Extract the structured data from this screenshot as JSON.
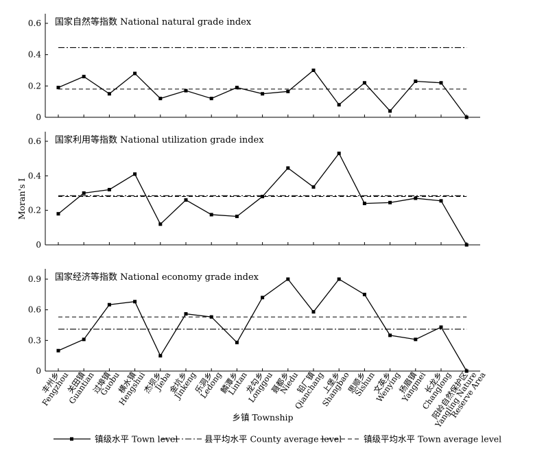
{
  "chart_data": {
    "type": "line",
    "ylabel": "Moran's I",
    "xlabel": "乡镇 Township",
    "categories": [
      {
        "cn": "丰州乡",
        "en": "Fengzhou"
      },
      {
        "cn": "关田镇",
        "en": "Guantian"
      },
      {
        "cn": "过埠镇",
        "en": "Guobu"
      },
      {
        "cn": "横水镇",
        "en": "Hengshui"
      },
      {
        "cn": "杰坝乡",
        "en": "Jieba"
      },
      {
        "cn": "金坑乡",
        "en": "Jinkeng"
      },
      {
        "cn": "乐洞乡",
        "en": "Ledong"
      },
      {
        "cn": "麟潭乡",
        "en": "Lintan"
      },
      {
        "cn": "龙勾乡",
        "en": "Longgou"
      },
      {
        "cn": "聂都乡",
        "en": "Niedu"
      },
      {
        "cn": "铅厂镇",
        "en": "Qianchang"
      },
      {
        "cn": "上堡乡",
        "en": "Shangbao"
      },
      {
        "cn": "思顺乡",
        "en": "Sishun"
      },
      {
        "cn": "文英乡",
        "en": "Wenying"
      },
      {
        "cn": "扬眉镇",
        "en": "Yangmei"
      },
      {
        "cn": "长龙乡",
        "en": "Changlong"
      },
      {
        "cn": "阳岭自然保护区",
        "en": "Yangling Nature Reserve Area"
      }
    ],
    "legend": {
      "placement": "bottom",
      "entries": [
        {
          "key": "town",
          "label": "镇级水平 Town level"
        },
        {
          "key": "county",
          "label": "县平均水平 County average level"
        },
        {
          "key": "town_avg",
          "label": "镇级平均水平 Town average level"
        }
      ]
    },
    "panels": [
      {
        "title": "国家自然等指数 National natural grade index",
        "ylim": [
          0,
          0.6
        ],
        "yticks": [
          "0",
          "0.2",
          "0.4",
          "0.6"
        ],
        "ytick_values": [
          0,
          0.2,
          0.4,
          0.6
        ],
        "town_level": [
          0.19,
          0.26,
          0.15,
          0.28,
          0.12,
          0.17,
          0.12,
          0.19,
          0.15,
          0.165,
          0.3,
          0.08,
          0.22,
          0.04,
          0.23,
          0.22,
          0.0
        ],
        "county_average": 0.445,
        "town_average": 0.18
      },
      {
        "title": "国家利用等指数 National utilization grade index",
        "ylim": [
          0,
          0.6
        ],
        "yticks": [
          "0",
          "0.2",
          "0.4",
          "0.6"
        ],
        "ytick_values": [
          0,
          0.2,
          0.4,
          0.6
        ],
        "town_level": [
          0.18,
          0.3,
          0.32,
          0.41,
          0.12,
          0.26,
          0.175,
          0.165,
          0.28,
          0.445,
          0.335,
          0.53,
          0.24,
          0.245,
          0.27,
          0.255,
          0.0
        ],
        "county_average": 0.285,
        "town_average": 0.28
      },
      {
        "title": "国家经济等指数 National economy grade index",
        "ylim": [
          0,
          1.0
        ],
        "yticks": [
          "0",
          "0.3",
          "0.6",
          "0.9"
        ],
        "ytick_values": [
          0,
          0.3,
          0.6,
          0.9
        ],
        "town_level": [
          0.2,
          0.31,
          0.65,
          0.68,
          0.15,
          0.56,
          0.53,
          0.28,
          0.72,
          0.9,
          0.58,
          0.9,
          0.75,
          0.35,
          0.31,
          0.43,
          0.0
        ],
        "county_average": 0.41,
        "town_average": 0.53
      }
    ]
  }
}
